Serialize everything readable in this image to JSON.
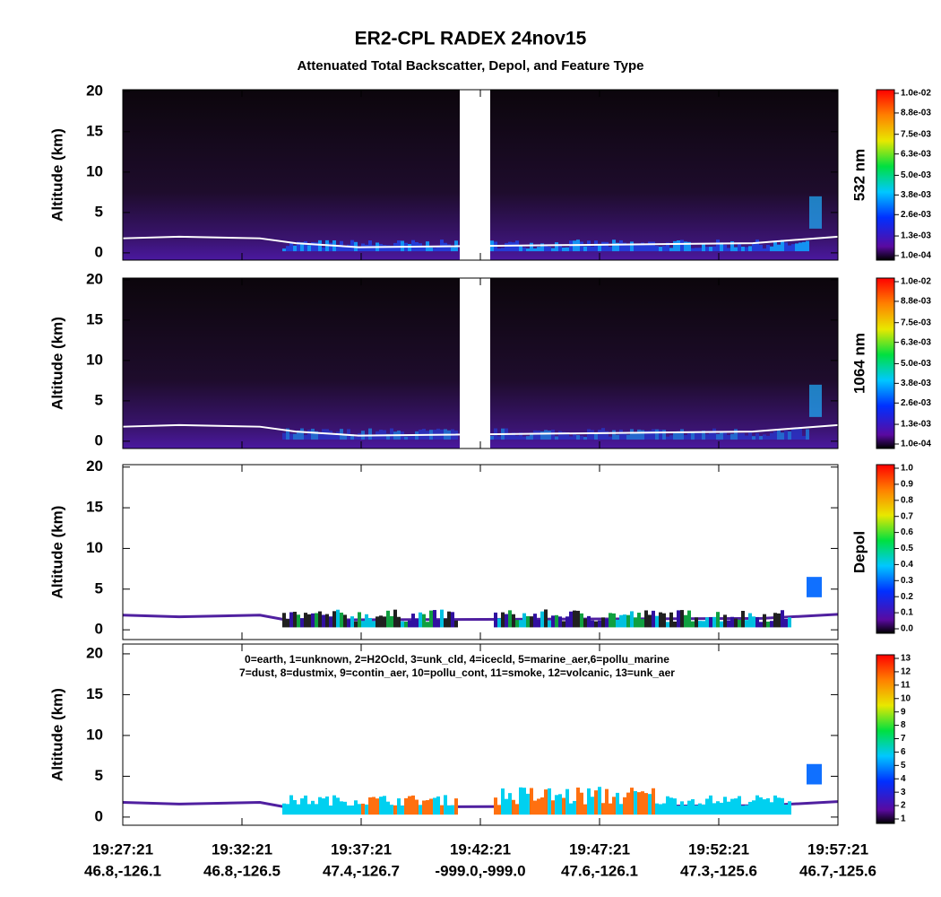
{
  "title": "ER2-CPL RADEX 24nov15",
  "subtitle": "Attenuated Total Backscatter, Depol, and Feature Type",
  "chart_data": [
    {
      "type": "curtain",
      "ylabel": "Altitude (km)",
      "side_label": "532 nm",
      "ylim": [
        -0.9,
        20.2
      ],
      "yticks": [
        0,
        5,
        10,
        15,
        20
      ],
      "colorbar": {
        "clim": [
          0.0001,
          0.01
        ],
        "ticks": [
          {
            "value": 0.0001,
            "label": "1.0e-04"
          },
          {
            "value": 0.0013,
            "label": "1.3e-03"
          },
          {
            "value": 0.0026,
            "label": "2.6e-03"
          },
          {
            "value": 0.0038,
            "label": "3.8e-03"
          },
          {
            "value": 0.005,
            "label": "5.0e-03"
          },
          {
            "value": 0.0063,
            "label": "6.3e-03"
          },
          {
            "value": 0.0075,
            "label": "7.5e-03"
          },
          {
            "value": 0.0088,
            "label": "8.8e-03"
          },
          {
            "value": 0.01,
            "label": "1.0e-02"
          }
        ]
      }
    },
    {
      "type": "curtain",
      "ylabel": "Altitude (km)",
      "side_label": "1064 nm",
      "ylim": [
        -0.9,
        20.2
      ],
      "yticks": [
        0,
        5,
        10,
        15,
        20
      ],
      "colorbar": {
        "clim": [
          0.0001,
          0.01
        ],
        "ticks": [
          {
            "value": 0.0001,
            "label": "1.0e-04"
          },
          {
            "value": 0.0013,
            "label": "1.3e-03"
          },
          {
            "value": 0.0026,
            "label": "2.6e-03"
          },
          {
            "value": 0.0038,
            "label": "3.8e-03"
          },
          {
            "value": 0.005,
            "label": "5.0e-03"
          },
          {
            "value": 0.0063,
            "label": "6.3e-03"
          },
          {
            "value": 0.0075,
            "label": "7.5e-03"
          },
          {
            "value": 0.0088,
            "label": "8.8e-03"
          },
          {
            "value": 0.01,
            "label": "1.0e-02"
          }
        ]
      }
    },
    {
      "type": "depol",
      "ylabel": "Altitude (km)",
      "side_label": "Depol",
      "ylim": [
        -1.2,
        20.3
      ],
      "yticks": [
        0,
        5,
        10,
        15,
        20
      ],
      "colorbar": {
        "clim": [
          0,
          1
        ],
        "ticks": [
          {
            "value": 0,
            "label": "0.0"
          },
          0.1,
          0.2,
          0.3,
          0.4,
          0.5,
          0.6,
          0.7,
          0.8,
          0.9,
          {
            "value": 1,
            "label": "1.0"
          }
        ]
      }
    },
    {
      "type": "feature",
      "ylabel": "Altitude (km)",
      "ylim": [
        -1.0,
        21.2
      ],
      "yticks": [
        0,
        5,
        10,
        15,
        20
      ],
      "legend_text": [
        "0=earth, 1=unknown, 2=H2Ocld, 3=unk_cld, 4=icecld, 5=marine_aer,6=pollu_marine",
        "7=dust, 8=dustmix, 9=contin_aer, 10=pollu_cont, 11=smoke, 12=volcanic, 13=unk_aer"
      ],
      "colorbar": {
        "clim": [
          1,
          13
        ],
        "ticks": [
          1,
          2,
          3,
          4,
          5,
          6,
          7,
          8,
          9,
          10,
          11,
          12,
          13
        ]
      },
      "xlim": [
        69441,
        71241
      ],
      "xticks": [
        {
          "value": 69441,
          "label": "19:27:21"
        },
        {
          "value": 69741,
          "label": "19:32:21"
        },
        {
          "value": 70041,
          "label": "19:37:21"
        },
        {
          "value": 70341,
          "label": "19:42:21"
        },
        {
          "value": 70641,
          "label": "19:47:21"
        },
        {
          "value": 70941,
          "label": "19:52:21"
        },
        {
          "value": 71241,
          "label": "19:57:21"
        }
      ],
      "xtick_sublabels": [
        "46.8,-126.1",
        "46.8,-126.5",
        "47.4,-126.7",
        "-999.0,-999.0",
        "47.6,-126.1",
        "47.3,-125.6",
        "46.7,-125.6"
      ]
    }
  ]
}
